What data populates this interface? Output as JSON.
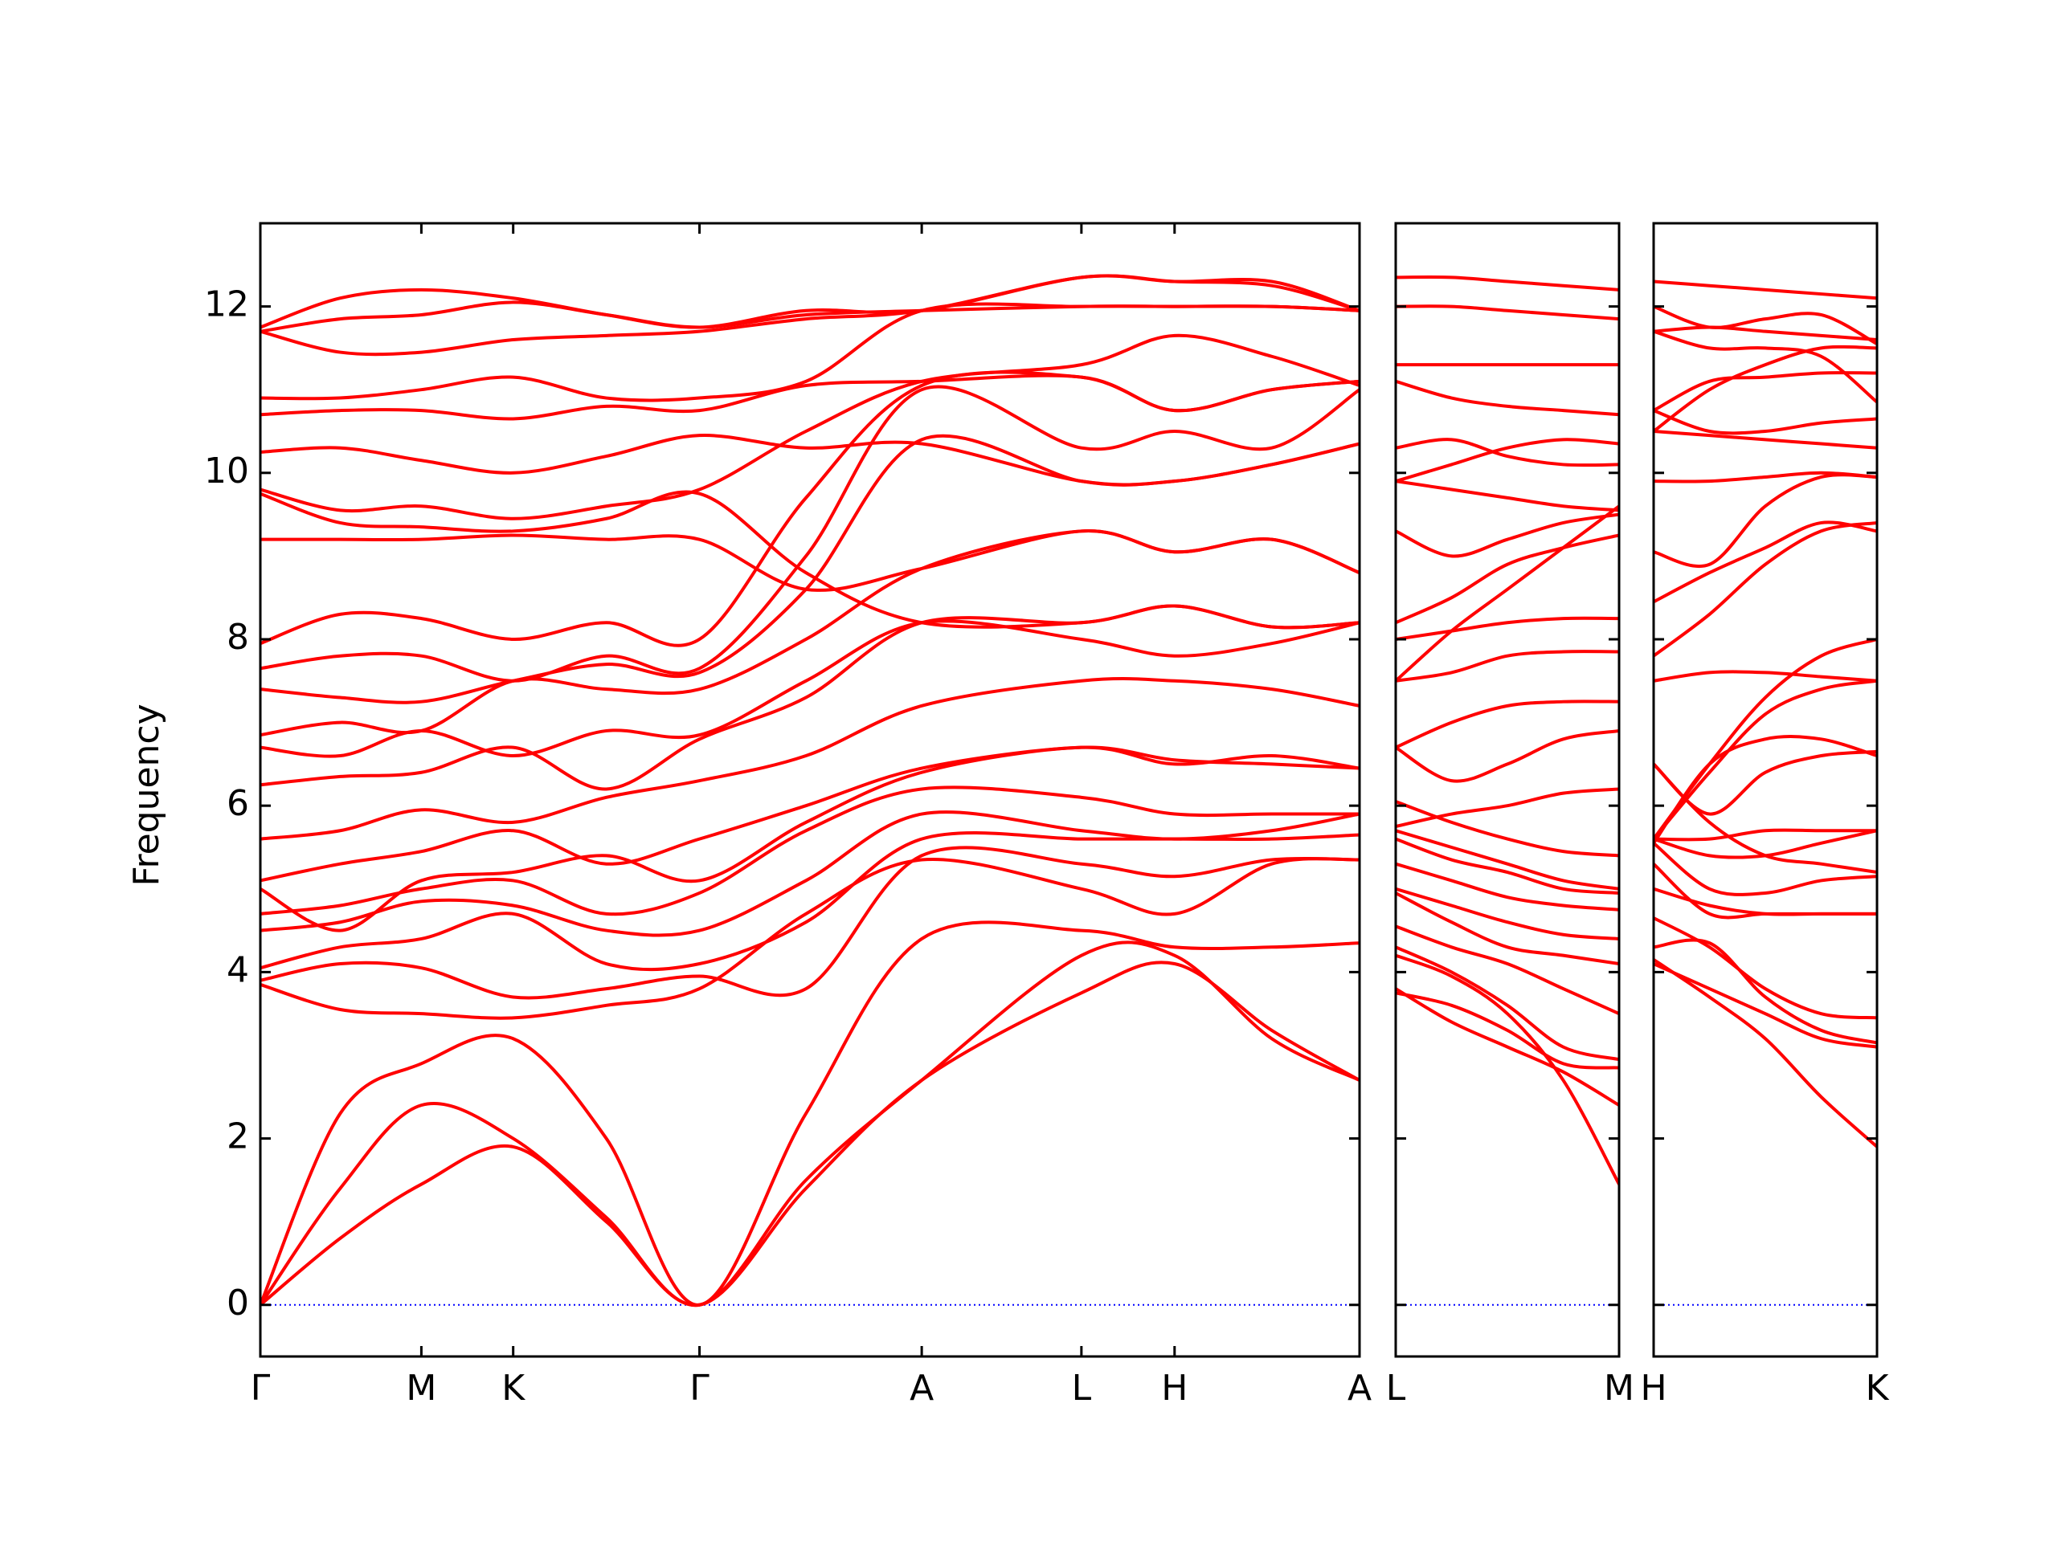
{
  "chart_data": [
    {
      "type": "line",
      "ylabel": "Frequency",
      "line_color": "#ff0000",
      "reference_line": {
        "value": 0,
        "color": "#0000ff"
      },
      "x": [
        0,
        0.6,
        1.21,
        1.9,
        2.6,
        3.3,
        4.1,
        4.97,
        6.17,
        6.87,
        7.6,
        8.26
      ],
      "xlim": [
        0,
        8.26
      ],
      "xticks": [
        {
          "value": 0,
          "label": "Γ"
        },
        {
          "value": 1.21,
          "label": "M"
        },
        {
          "value": 1.9,
          "label": "K"
        },
        {
          "value": 3.3,
          "label": "Γ"
        },
        {
          "value": 4.97,
          "label": "A"
        },
        {
          "value": 6.17,
          "label": "L"
        },
        {
          "value": 6.87,
          "label": "H"
        },
        {
          "value": 8.26,
          "label": "A"
        }
      ],
      "ylim": [
        -0.62,
        13.0
      ],
      "yticks": [
        0,
        2,
        4,
        6,
        8,
        10,
        12
      ],
      "series": [
        {
          "values": [
            0,
            0.8,
            1.45,
            1.9,
            1.0,
            0,
            1.4,
            2.7,
            3.75,
            4.1,
            3.3,
            2.7
          ]
        },
        {
          "values": [
            0,
            1.4,
            2.4,
            2.0,
            1.05,
            0,
            1.5,
            2.7,
            4.2,
            4.2,
            3.2,
            2.7
          ]
        },
        {
          "values": [
            0,
            2.3,
            2.9,
            3.2,
            2.0,
            0,
            2.3,
            4.4,
            4.5,
            4.3,
            4.3,
            4.35
          ]
        },
        {
          "values": [
            3.85,
            3.55,
            3.5,
            3.45,
            3.6,
            3.8,
            4.7,
            5.35,
            5.0,
            4.7,
            5.3,
            5.35
          ]
        },
        {
          "values": [
            3.9,
            4.1,
            4.05,
            3.7,
            3.8,
            3.95,
            3.8,
            5.4,
            5.3,
            5.15,
            5.35,
            5.35
          ]
        },
        {
          "values": [
            4.05,
            4.3,
            4.4,
            4.7,
            4.1,
            4.1,
            4.6,
            5.6,
            5.6,
            5.6,
            5.6,
            5.65
          ]
        },
        {
          "values": [
            4.5,
            4.6,
            4.85,
            4.8,
            4.5,
            4.5,
            5.1,
            5.9,
            5.7,
            5.6,
            5.7,
            5.9
          ]
        },
        {
          "values": [
            4.7,
            4.8,
            5.0,
            5.1,
            4.7,
            4.95,
            5.7,
            6.2,
            6.1,
            5.9,
            5.9,
            5.9
          ]
        },
        {
          "values": [
            5.0,
            4.5,
            5.1,
            5.2,
            5.4,
            5.1,
            5.8,
            6.4,
            6.7,
            6.5,
            6.6,
            6.45
          ]
        },
        {
          "values": [
            5.1,
            5.3,
            5.45,
            5.7,
            5.3,
            5.6,
            6.0,
            6.45,
            6.7,
            6.55,
            6.5,
            6.45
          ]
        },
        {
          "values": [
            5.6,
            5.7,
            5.95,
            5.8,
            6.1,
            6.3,
            6.6,
            7.2,
            7.5,
            7.5,
            7.4,
            7.2
          ]
        },
        {
          "values": [
            6.25,
            6.35,
            6.4,
            6.7,
            6.2,
            6.8,
            7.3,
            8.2,
            8.2,
            8.4,
            8.15,
            8.2
          ]
        },
        {
          "values": [
            6.7,
            6.6,
            6.9,
            6.6,
            6.9,
            6.85,
            7.5,
            8.2,
            8.0,
            7.8,
            7.95,
            8.2
          ]
        },
        {
          "values": [
            6.85,
            7.0,
            6.9,
            7.5,
            7.4,
            7.4,
            8.0,
            8.85,
            9.3,
            9.05,
            9.2,
            8.8
          ]
        },
        {
          "values": [
            7.4,
            7.3,
            7.25,
            7.5,
            7.7,
            7.6,
            8.6,
            10.4,
            9.9,
            9.9,
            10.1,
            10.35
          ]
        },
        {
          "values": [
            7.65,
            7.8,
            7.8,
            7.5,
            7.8,
            7.65,
            9.0,
            11.0,
            10.3,
            10.5,
            10.3,
            11.0
          ]
        },
        {
          "values": [
            7.95,
            8.3,
            8.25,
            8.0,
            8.2,
            8.0,
            9.7,
            11.05,
            11.15,
            10.75,
            11.0,
            11.1
          ]
        },
        {
          "values": [
            9.2,
            9.2,
            9.2,
            9.25,
            9.2,
            9.2,
            8.6,
            8.85,
            9.3,
            9.05,
            9.2,
            8.8
          ]
        },
        {
          "values": [
            9.75,
            9.4,
            9.35,
            9.3,
            9.45,
            9.75,
            8.8,
            8.2,
            8.2,
            8.4,
            8.15,
            8.2
          ]
        },
        {
          "values": [
            9.8,
            9.55,
            9.6,
            9.45,
            9.6,
            9.8,
            10.5,
            11.1,
            11.3,
            11.65,
            11.4,
            11.05
          ]
        },
        {
          "values": [
            10.25,
            10.3,
            10.15,
            10.0,
            10.2,
            10.45,
            10.3,
            10.35,
            9.9,
            9.9,
            10.1,
            10.35
          ]
        },
        {
          "values": [
            10.7,
            10.75,
            10.75,
            10.65,
            10.8,
            10.75,
            11.05,
            11.1,
            11.15,
            10.75,
            11.0,
            11.1
          ]
        },
        {
          "values": [
            10.9,
            10.9,
            11.0,
            11.15,
            10.9,
            10.9,
            11.1,
            11.95,
            12.0,
            12.0,
            12.0,
            11.95
          ]
        },
        {
          "values": [
            11.7,
            11.45,
            11.45,
            11.6,
            11.65,
            11.7,
            11.85,
            11.95,
            12.35,
            12.3,
            12.25,
            11.95
          ]
        },
        {
          "values": [
            11.7,
            11.85,
            11.9,
            12.05,
            11.9,
            11.75,
            11.9,
            11.95,
            12.0,
            12.0,
            12.0,
            11.95
          ]
        },
        {
          "values": [
            11.75,
            12.1,
            12.2,
            12.1,
            11.9,
            11.75,
            11.95,
            11.95,
            12.35,
            12.3,
            12.3,
            11.95
          ]
        }
      ]
    },
    {
      "type": "line",
      "line_color": "#ff0000",
      "reference_line": {
        "value": 0,
        "color": "#0000ff"
      },
      "x": [
        0,
        0.42,
        0.84,
        1.26,
        1.68
      ],
      "xlim": [
        0,
        1.68
      ],
      "xticks": [
        {
          "value": 0,
          "label": "L"
        },
        {
          "value": 1.68,
          "label": "M"
        }
      ],
      "ylim": [
        -0.62,
        13.0
      ],
      "series": [
        {
          "values": [
            3.75,
            3.6,
            3.3,
            2.9,
            2.85
          ]
        },
        {
          "values": [
            4.2,
            3.95,
            3.5,
            2.7,
            1.45
          ]
        },
        {
          "values": [
            3.8,
            3.4,
            3.1,
            2.8,
            2.4
          ]
        },
        {
          "values": [
            4.3,
            4.0,
            3.6,
            3.1,
            2.95
          ]
        },
        {
          "values": [
            4.55,
            4.3,
            4.1,
            3.8,
            3.5
          ]
        },
        {
          "values": [
            4.95,
            4.6,
            4.3,
            4.2,
            4.1
          ]
        },
        {
          "values": [
            5.0,
            4.8,
            4.6,
            4.45,
            4.4
          ]
        },
        {
          "values": [
            5.3,
            5.1,
            4.9,
            4.8,
            4.75
          ]
        },
        {
          "values": [
            5.6,
            5.35,
            5.2,
            5.0,
            4.95
          ]
        },
        {
          "values": [
            5.7,
            5.5,
            5.3,
            5.1,
            5.0
          ]
        },
        {
          "values": [
            6.05,
            5.8,
            5.6,
            5.45,
            5.4
          ]
        },
        {
          "values": [
            5.75,
            5.9,
            6.0,
            6.15,
            6.2
          ]
        },
        {
          "values": [
            6.7,
            6.3,
            6.5,
            6.8,
            6.9
          ]
        },
        {
          "values": [
            6.7,
            7.0,
            7.2,
            7.25,
            7.25
          ]
        },
        {
          "values": [
            7.5,
            7.6,
            7.8,
            7.85,
            7.85
          ]
        },
        {
          "values": [
            8.0,
            8.1,
            8.2,
            8.25,
            8.25
          ]
        },
        {
          "values": [
            8.2,
            8.5,
            8.9,
            9.1,
            9.25
          ]
        },
        {
          "values": [
            9.3,
            9.0,
            9.2,
            9.4,
            9.5
          ]
        },
        {
          "values": [
            7.5,
            8.1,
            8.6,
            9.1,
            9.6
          ]
        },
        {
          "values": [
            9.9,
            9.8,
            9.7,
            9.6,
            9.55
          ]
        },
        {
          "values": [
            10.3,
            10.4,
            10.2,
            10.1,
            10.1
          ]
        },
        {
          "values": [
            9.9,
            10.1,
            10.3,
            10.4,
            10.35
          ]
        },
        {
          "values": [
            11.1,
            10.9,
            10.8,
            10.75,
            10.7
          ]
        },
        {
          "values": [
            11.3,
            11.3,
            11.3,
            11.3,
            11.3
          ]
        },
        {
          "values": [
            12.0,
            12.0,
            11.95,
            11.9,
            11.85
          ]
        },
        {
          "values": [
            12.35,
            12.35,
            12.3,
            12.25,
            12.2
          ]
        }
      ]
    },
    {
      "type": "line",
      "line_color": "#ff0000",
      "reference_line": {
        "value": 0,
        "color": "#0000ff"
      },
      "x": [
        0,
        0.42,
        0.84,
        1.26,
        1.68
      ],
      "xlim": [
        0,
        1.68
      ],
      "xticks": [
        {
          "value": 0,
          "label": "H"
        },
        {
          "value": 1.68,
          "label": "K"
        }
      ],
      "ylim": [
        -0.62,
        13.0
      ],
      "series": [
        {
          "values": [
            4.15,
            3.7,
            3.2,
            2.5,
            1.9
          ]
        },
        {
          "values": [
            4.1,
            3.8,
            3.5,
            3.2,
            3.1
          ]
        },
        {
          "values": [
            4.3,
            4.35,
            3.7,
            3.3,
            3.15
          ]
        },
        {
          "values": [
            4.65,
            4.3,
            3.8,
            3.5,
            3.45
          ]
        },
        {
          "values": [
            5.0,
            4.8,
            4.7,
            4.7,
            4.7
          ]
        },
        {
          "values": [
            5.3,
            4.7,
            4.7,
            4.7,
            4.7
          ]
        },
        {
          "values": [
            5.55,
            5.0,
            4.95,
            5.1,
            5.15
          ]
        },
        {
          "values": [
            5.6,
            5.4,
            5.4,
            5.55,
            5.7
          ]
        },
        {
          "values": [
            5.6,
            5.6,
            5.7,
            5.7,
            5.7
          ]
        },
        {
          "values": [
            6.5,
            5.8,
            5.4,
            5.3,
            5.2
          ]
        },
        {
          "values": [
            5.55,
            6.5,
            6.8,
            6.8,
            6.6
          ]
        },
        {
          "values": [
            6.5,
            5.9,
            6.4,
            6.6,
            6.65
          ]
        },
        {
          "values": [
            5.6,
            6.4,
            7.1,
            7.4,
            7.5
          ]
        },
        {
          "values": [
            5.6,
            6.5,
            7.3,
            7.8,
            8.0
          ]
        },
        {
          "values": [
            7.5,
            7.6,
            7.6,
            7.55,
            7.5
          ]
        },
        {
          "values": [
            7.8,
            8.3,
            8.9,
            9.3,
            9.4
          ]
        },
        {
          "values": [
            8.45,
            8.8,
            9.1,
            9.4,
            9.3
          ]
        },
        {
          "values": [
            9.05,
            8.9,
            9.6,
            9.95,
            9.95
          ]
        },
        {
          "values": [
            9.9,
            9.9,
            9.95,
            10.0,
            9.95
          ]
        },
        {
          "values": [
            10.5,
            10.45,
            10.4,
            10.35,
            10.3
          ]
        },
        {
          "values": [
            10.75,
            10.5,
            10.5,
            10.6,
            10.65
          ]
        },
        {
          "values": [
            10.75,
            11.1,
            11.15,
            11.2,
            11.2
          ]
        },
        {
          "values": [
            11.7,
            11.5,
            11.5,
            11.4,
            10.85
          ]
        },
        {
          "values": [
            10.5,
            11.0,
            11.3,
            11.5,
            11.5
          ]
        },
        {
          "values": [
            11.7,
            11.75,
            11.7,
            11.65,
            11.6
          ]
        },
        {
          "values": [
            12.0,
            11.75,
            11.85,
            11.9,
            11.55
          ]
        },
        {
          "values": [
            12.3,
            12.25,
            12.2,
            12.15,
            12.1
          ]
        }
      ]
    }
  ]
}
